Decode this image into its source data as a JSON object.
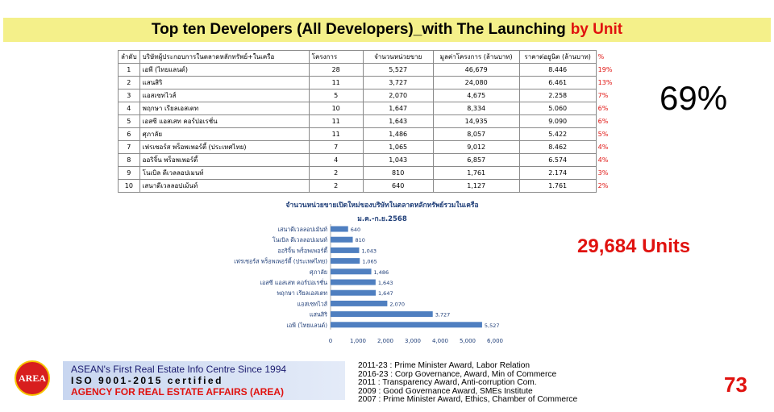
{
  "title": {
    "main": "Top ten Developers (All Developers)_with The Launching",
    "highlight": "by Unit"
  },
  "table": {
    "headers": [
      "ลำดับ",
      "บริษัทผู้ประกอบการในตลาดหลักทรัพย์+ในเครือ",
      "โครงการ",
      "จำนวนหน่วยขาย",
      "มูลค่าโครงการ (ล้านบาท)",
      "ราคาต่อยูนิต (ล้านบาท)",
      "%"
    ],
    "rows": [
      [
        "1",
        "เอพี (ไทยแลนด์)",
        "28",
        "5,527",
        "46,679",
        "8.446",
        "19%"
      ],
      [
        "2",
        "แสนสิริ",
        "11",
        "3,727",
        "24,080",
        "6.461",
        "13%"
      ],
      [
        "3",
        "แอสเซทไวส์",
        "5",
        "2,070",
        "4,675",
        "2.258",
        "7%"
      ],
      [
        "4",
        "พฤกษา เรียลเอสเตท",
        "10",
        "1,647",
        "8,334",
        "5.060",
        "6%"
      ],
      [
        "5",
        "เอสซี แอสเสท คอร์ปอเรชั่น",
        "11",
        "1,643",
        "14,935",
        "9.090",
        "6%"
      ],
      [
        "6",
        "ศุภาลัย",
        "11",
        "1,486",
        "8,057",
        "5.422",
        "5%"
      ],
      [
        "7",
        "เฟรเซอร์ส พร็อพเพอร์ตี้ (ประเทศไทย)",
        "7",
        "1,065",
        "9,012",
        "8.462",
        "4%"
      ],
      [
        "8",
        "ออริจิ้น พร็อพเพอร์ตี้",
        "4",
        "1,043",
        "6,857",
        "6.574",
        "4%"
      ],
      [
        "9",
        "โนเบิล ดีเวลลอปเมนท์",
        "2",
        "810",
        "1,761",
        "2.174",
        "3%"
      ],
      [
        "10",
        "เสนาดีเวลลอปเม้นท์",
        "2",
        "640",
        "1,127",
        "1.761",
        "2%"
      ]
    ]
  },
  "share_total": "69%",
  "total_units": "29,684 Units",
  "chart_data": {
    "type": "bar",
    "orientation": "horizontal",
    "title": "จำนวนหน่วยขายเปิดใหม่ของบริษัทในตลาดหลักทรัพย์รวมในเครือ",
    "subtitle": "ม.ค.-ก.ย.2568",
    "categories": [
      "เสนาดีเวลลอปเม้นท์",
      "โนเบิล ดีเวลลอปเมนท์",
      "ออริจิ้น พร็อพเพอร์ตี้",
      "เฟรเซอร์ส พร็อพเพอร์ตี้ (ประเทศไทย)",
      "ศุภาลัย",
      "เอสซี แอสเสท คอร์ปอเรชั่น",
      "พฤกษา เรียลเอสเตท",
      "แอสเซทไวส์",
      "แสนสิริ",
      "เอพี (ไทยแลนด์)"
    ],
    "values": [
      640,
      810,
      1043,
      1065,
      1486,
      1643,
      1647,
      2070,
      3727,
      5527
    ],
    "value_labels": [
      "640",
      "810",
      "1,043",
      "1,065",
      "1,486",
      "1,643",
      "1,647",
      "2,070",
      "3,727",
      "5,527"
    ],
    "xlim": [
      0,
      6000
    ],
    "xticks": [
      "0",
      "1,000",
      "2,000",
      "3,000",
      "4,000",
      "5,000",
      "6,000"
    ],
    "bar_color": "#4f7fc0",
    "grid": false,
    "legend": "none"
  },
  "footer": {
    "logo_text": "AREA",
    "banner": [
      "ASEAN's First Real Estate Info Centre Since 1994",
      "ISO 9001-2015 certified",
      "AGENCY FOR REAL ESTATE AFFAIRS (AREA)"
    ],
    "awards": [
      "2011-23 : Prime Minister Award, Labor Relation",
      "2016-23 : Corp Governance, Award, Min of Commerce",
      "2011 : Transparency Award, Anti-corruption Com.",
      "2009 : Good Governance Award, SMEs Institute",
      "2007 : Prime Minister Award, Ethics, Chamber of Commerce"
    ],
    "page_number": "73"
  },
  "colors": {
    "accent_red": "#e0120f",
    "title_bg": "#f4f08a",
    "bar": "#4f7fc0"
  }
}
